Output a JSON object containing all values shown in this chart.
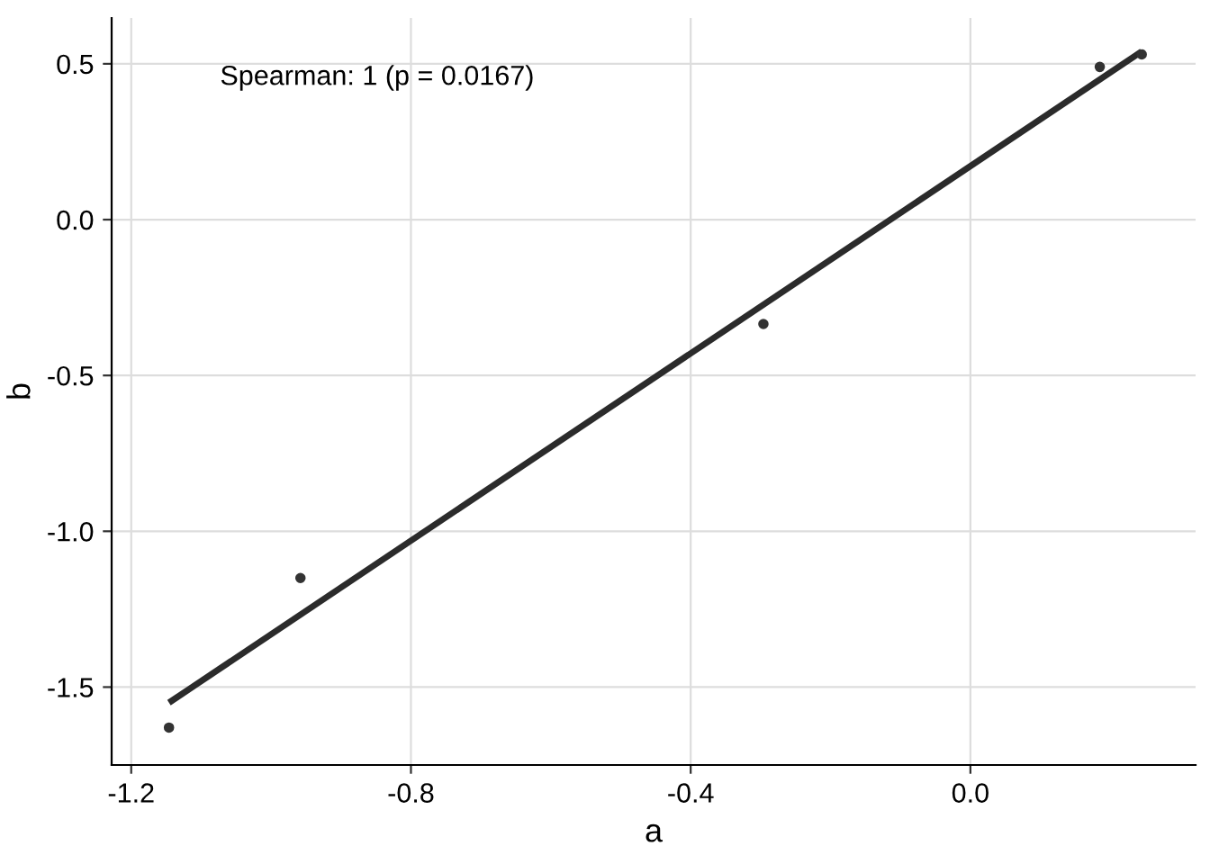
{
  "chart_data": {
    "type": "scatter",
    "xlabel": "a",
    "ylabel": "b",
    "x": [
      -1.146,
      -0.958,
      -0.296,
      0.185,
      0.245
    ],
    "series": [
      {
        "marker": "circle",
        "color": "#333333",
        "values": [
          -1.63,
          -1.15,
          -0.335,
          0.49,
          0.53
        ]
      },
      {
        "type": "line",
        "marker": "none",
        "color": "#2b2b2b",
        "x": [
          -1.146,
          0.245
        ],
        "values": [
          -1.55,
          0.54
        ]
      }
    ],
    "xlim": [
      -1.228,
      0.322
    ],
    "xticks": [
      {
        "value": -1.2,
        "label": "-1.2"
      },
      {
        "value": -0.8,
        "label": "-0.8"
      },
      {
        "value": -0.4,
        "label": "-0.4"
      },
      {
        "value": 0.0,
        "label": "0.0"
      }
    ],
    "ylim": [
      -1.75,
      0.647
    ],
    "yticks": [
      {
        "value": -1.5,
        "label": "-1.5"
      },
      {
        "value": -1.0,
        "label": "-1.0"
      },
      {
        "value": -0.5,
        "label": "-0.5"
      },
      {
        "value": 0.0,
        "label": "0.0"
      },
      {
        "value": 0.5,
        "label": "0.5"
      }
    ],
    "grid": true,
    "annotations": [
      "Spearman: 1 (p = 0.0167)"
    ]
  }
}
